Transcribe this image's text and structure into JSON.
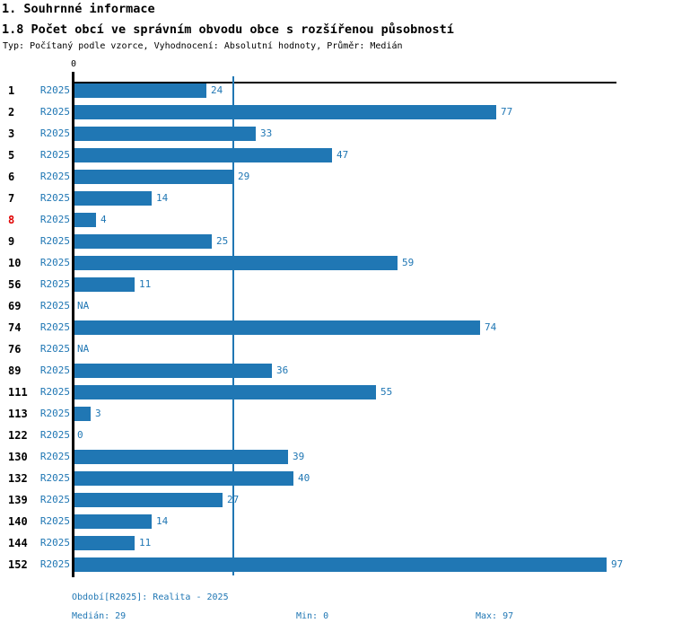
{
  "header": {
    "section_title": "1. Souhrnné informace",
    "chart_title": "1.8 Počet obcí ve správním obvodu obce s rozšířenou působností",
    "meta": "Typ: Počítaný podle vzorce, Vyhodnocení: Absolutní hodnoty, Průměr: Medián"
  },
  "chart_data": {
    "type": "bar",
    "orientation": "horizontal",
    "x_tick_label": "0",
    "xlim": [
      0,
      99
    ],
    "median": 29,
    "series_name": "R2025",
    "rows": [
      {
        "id": "1",
        "period": "R2025",
        "value": 24,
        "label": "24"
      },
      {
        "id": "2",
        "period": "R2025",
        "value": 77,
        "label": "77"
      },
      {
        "id": "3",
        "period": "R2025",
        "value": 33,
        "label": "33"
      },
      {
        "id": "5",
        "period": "R2025",
        "value": 47,
        "label": "47"
      },
      {
        "id": "6",
        "period": "R2025",
        "value": 29,
        "label": "29"
      },
      {
        "id": "7",
        "period": "R2025",
        "value": 14,
        "label": "14"
      },
      {
        "id": "8",
        "period": "R2025",
        "value": 4,
        "label": "4",
        "highlight": true
      },
      {
        "id": "9",
        "period": "R2025",
        "value": 25,
        "label": "25"
      },
      {
        "id": "10",
        "period": "R2025",
        "value": 59,
        "label": "59"
      },
      {
        "id": "56",
        "period": "R2025",
        "value": 11,
        "label": "11"
      },
      {
        "id": "69",
        "period": "R2025",
        "value": null,
        "label": "NA"
      },
      {
        "id": "74",
        "period": "R2025",
        "value": 74,
        "label": "74"
      },
      {
        "id": "76",
        "period": "R2025",
        "value": null,
        "label": "NA"
      },
      {
        "id": "89",
        "period": "R2025",
        "value": 36,
        "label": "36"
      },
      {
        "id": "111",
        "period": "R2025",
        "value": 55,
        "label": "55"
      },
      {
        "id": "113",
        "period": "R2025",
        "value": 3,
        "label": "3"
      },
      {
        "id": "122",
        "period": "R2025",
        "value": 0,
        "label": "0"
      },
      {
        "id": "130",
        "period": "R2025",
        "value": 39,
        "label": "39"
      },
      {
        "id": "132",
        "period": "R2025",
        "value": 40,
        "label": "40"
      },
      {
        "id": "139",
        "period": "R2025",
        "value": 27,
        "label": "27"
      },
      {
        "id": "140",
        "period": "R2025",
        "value": 14,
        "label": "14"
      },
      {
        "id": "144",
        "period": "R2025",
        "value": 11,
        "label": "11"
      },
      {
        "id": "152",
        "period": "R2025",
        "value": 97,
        "label": "97"
      }
    ],
    "colors": {
      "bar": "#2077b4",
      "value_text": "#2077b4",
      "highlight_label": "#e00000",
      "axis": "#000000"
    }
  },
  "footer": {
    "period_info": "Období[R2025]: Realita - 2025",
    "median": "Medián: 29",
    "min": "Min: 0",
    "max": "Max: 97"
  }
}
